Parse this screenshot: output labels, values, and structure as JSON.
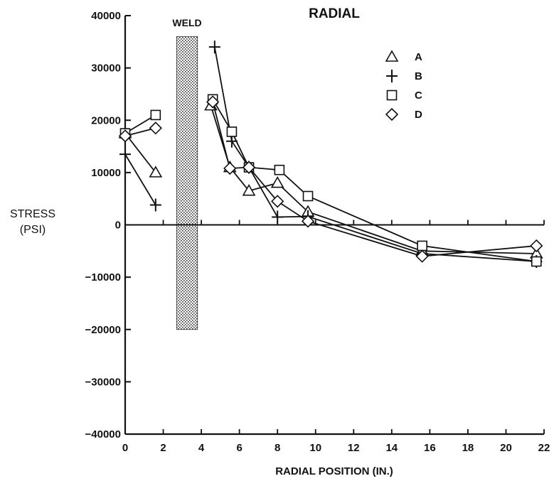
{
  "chart_data": {
    "type": "line",
    "title": "RADIAL",
    "xlabel": "RADIAL POSITION (IN.)",
    "ylabel": [
      "STRESS",
      "(PSI)"
    ],
    "xlim": [
      0,
      22
    ],
    "ylim": [
      -40000,
      40000
    ],
    "x_ticks": [
      0,
      2,
      4,
      6,
      8,
      10,
      12,
      14,
      16,
      18,
      20,
      22
    ],
    "y_ticks": [
      40000,
      30000,
      20000,
      10000,
      0,
      -10000,
      -20000,
      -30000,
      -40000
    ],
    "grid": false,
    "legend_position": "top-right",
    "weld": {
      "label": "WELD",
      "x_range": [
        2.7,
        3.8
      ],
      "y_range": [
        -20000,
        36000
      ]
    },
    "series": [
      {
        "name": "A",
        "marker": "triangle",
        "segments": [
          [
            [
              0,
              17500
            ],
            [
              1.6,
              10000
            ]
          ],
          [
            [
              4.5,
              22800
            ],
            [
              5.5,
              11000
            ],
            [
              6.5,
              6500
            ],
            [
              8.0,
              8000
            ],
            [
              9.6,
              2500
            ],
            [
              15.6,
              -5000
            ],
            [
              21.6,
              -5500
            ]
          ]
        ]
      },
      {
        "name": "B",
        "marker": "plus",
        "segments": [
          [
            [
              0,
              13500
            ],
            [
              1.6,
              3800
            ]
          ],
          [
            [
              4.7,
              34000
            ],
            [
              5.6,
              16000
            ],
            [
              6.5,
              11000
            ],
            [
              8.0,
              1500
            ],
            [
              9.6,
              1600
            ],
            [
              15.6,
              -5500
            ],
            [
              21.6,
              -7000
            ]
          ]
        ]
      },
      {
        "name": "C",
        "marker": "square",
        "segments": [
          [
            [
              0,
              17500
            ],
            [
              1.6,
              21000
            ]
          ],
          [
            [
              4.6,
              24000
            ],
            [
              5.6,
              17800
            ],
            [
              6.5,
              11000
            ],
            [
              8.1,
              10500
            ],
            [
              9.6,
              5500
            ],
            [
              15.6,
              -4000
            ],
            [
              21.6,
              -7000
            ]
          ]
        ]
      },
      {
        "name": "D",
        "marker": "diamond",
        "segments": [
          [
            [
              0,
              17000
            ],
            [
              1.6,
              18500
            ]
          ],
          [
            [
              4.6,
              23500
            ],
            [
              5.5,
              10800
            ],
            [
              6.5,
              11000
            ],
            [
              8.0,
              4500
            ],
            [
              9.6,
              700
            ],
            [
              15.6,
              -6000
            ],
            [
              21.6,
              -4000
            ]
          ]
        ]
      }
    ]
  }
}
